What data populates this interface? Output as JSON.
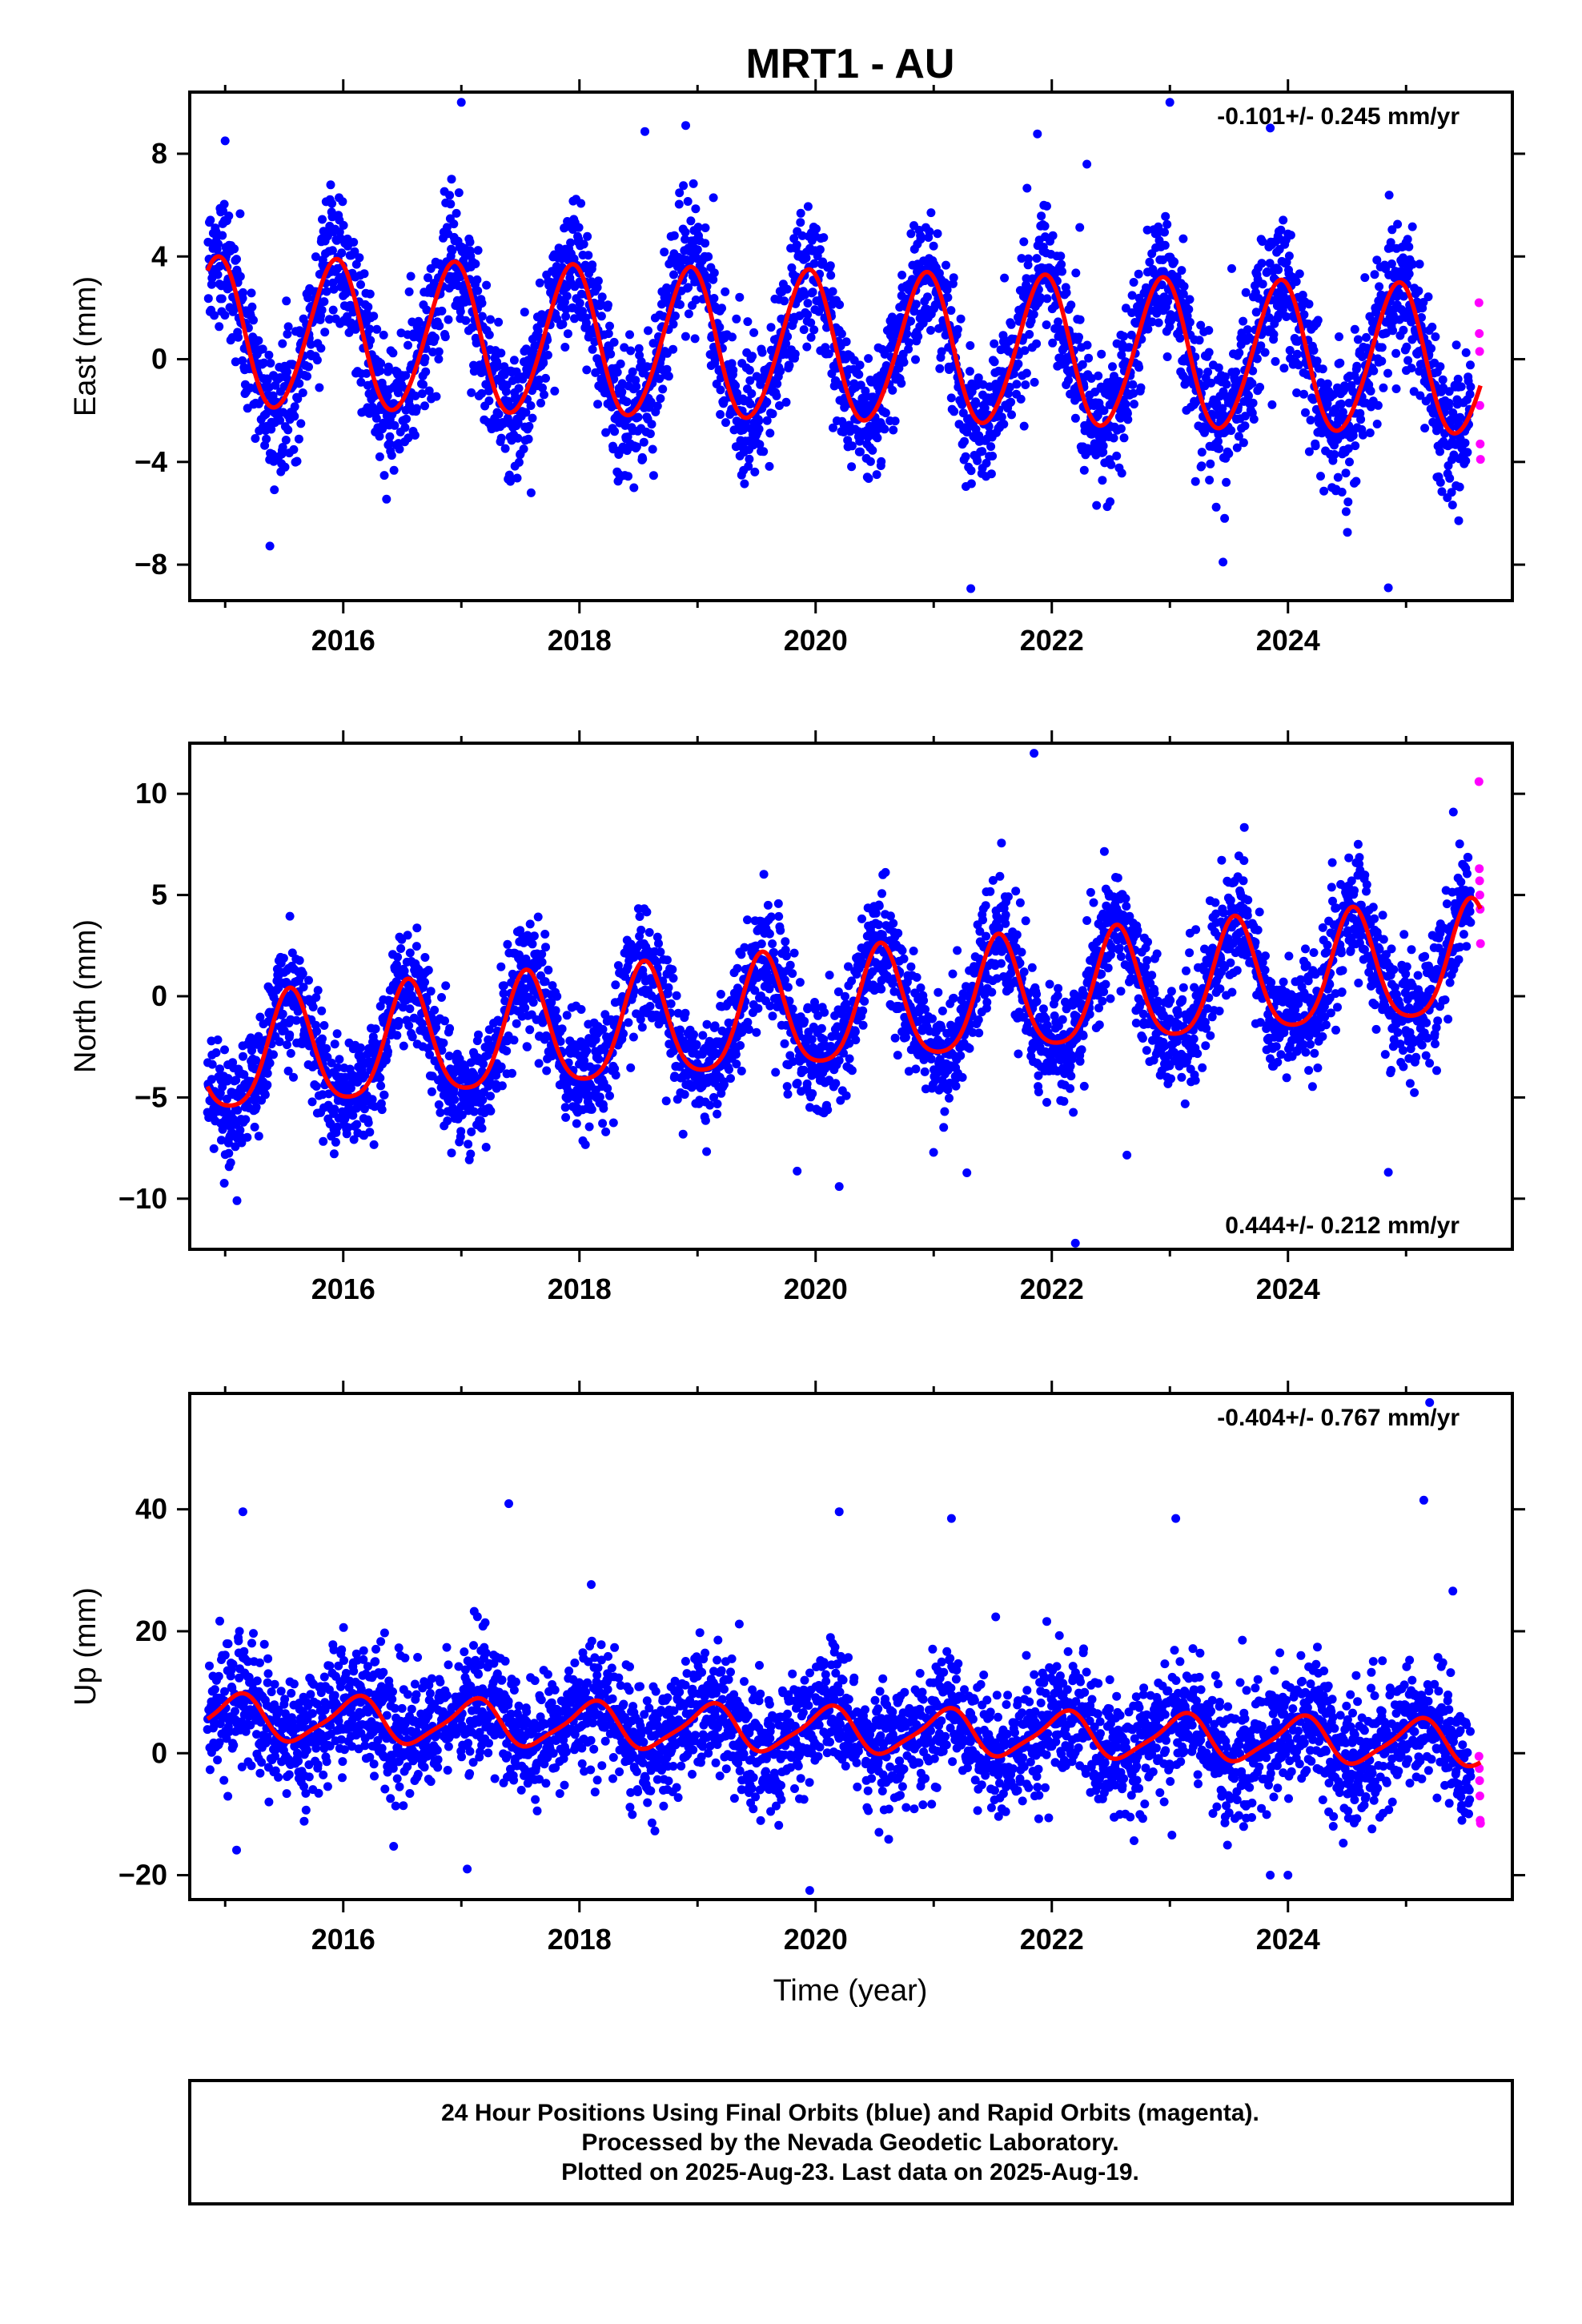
{
  "title": "MRT1 - AU",
  "xlabel": "Time (year)",
  "footer": {
    "line1": "24 Hour Positions Using Final Orbits (blue) and Rapid Orbits (magenta).",
    "line2": "Processed by the Nevada Geodetic Laboratory.",
    "line3": "Plotted on 2025-Aug-23. Last data on 2025-Aug-19."
  },
  "colors": {
    "final_orbits": "#0000ff",
    "rapid_orbits": "#ff00ff",
    "model_fit": "#ff0000"
  },
  "chart_data": [
    {
      "type": "scatter",
      "component": "East",
      "ylabel": "East (mm)",
      "rate_label": "-0.101+/- 0.245 mm/yr",
      "rate_position": "top-right",
      "xlim": [
        2014.7,
        2025.9
      ],
      "ylim": [
        -9.4,
        10.4
      ],
      "yticks": [
        -8,
        -4,
        0,
        4,
        8
      ],
      "xticks": [
        2016,
        2018,
        2020,
        2022,
        2024
      ],
      "data_start": 2014.85,
      "final_end": 2025.55,
      "rapid_end": 2025.63,
      "fit": {
        "offset": 0.45,
        "trend_mm_per_yr": -0.101,
        "annual_amp": 2.9,
        "annual_peak": 2014.93,
        "semiannual_amp": 0.2,
        "semiannual_peak": 2015.0
      },
      "scatter_sd": 1.3,
      "outliers": [
        [
          2017.0,
          10.0
        ],
        [
          2023.0,
          10.0
        ],
        [
          2023.85,
          9.0
        ],
        [
          2018.9,
          9.1
        ],
        [
          2024.85,
          -8.9
        ],
        [
          2023.45,
          -7.9
        ],
        [
          2015.0,
          8.5
        ]
      ],
      "rapid_values": [
        2.2,
        1.0,
        0.3,
        -1.8,
        -3.3,
        -3.9
      ]
    },
    {
      "type": "scatter",
      "component": "North",
      "ylabel": "North (mm)",
      "rate_label": "0.444+/- 0.212 mm/yr",
      "rate_position": "bottom-right",
      "xlim": [
        2014.7,
        2025.9
      ],
      "ylim": [
        -12.5,
        12.5
      ],
      "yticks": [
        -10,
        -5,
        0,
        5,
        10
      ],
      "xticks": [
        2016,
        2018,
        2020,
        2022,
        2024
      ],
      "data_start": 2014.85,
      "final_end": 2025.55,
      "rapid_end": 2025.63,
      "fit": {
        "offset": -0.9,
        "trend_mm_per_yr": 0.444,
        "annual_amp": 2.8,
        "annual_peak": 2015.55,
        "semiannual_amp": 0.5,
        "semiannual_peak": 2015.55
      },
      "scatter_sd": 1.4,
      "outliers": [
        [
          2021.85,
          12.0
        ],
        [
          2022.2,
          -12.2
        ],
        [
          2024.85,
          -8.7
        ],
        [
          2025.4,
          9.1
        ],
        [
          2015.1,
          -10.1
        ],
        [
          2020.2,
          -9.4
        ]
      ],
      "rapid_values": [
        10.6,
        6.3,
        5.7,
        5.0,
        4.3,
        2.6
      ]
    },
    {
      "type": "scatter",
      "component": "Up",
      "ylabel": "Up (mm)",
      "rate_label": "-0.404+/- 0.767 mm/yr",
      "rate_position": "top-right",
      "xlim": [
        2014.7,
        2025.9
      ],
      "ylim": [
        -24,
        59
      ],
      "yticks": [
        -20,
        0,
        20,
        40
      ],
      "xticks": [
        2016,
        2018,
        2020,
        2022,
        2024
      ],
      "data_start": 2014.85,
      "final_end": 2025.55,
      "rapid_end": 2025.63,
      "fit": {
        "offset": 3.8,
        "trend_mm_per_yr": -0.404,
        "annual_amp": 3.6,
        "annual_peak": 2015.1,
        "semiannual_amp": 0.8,
        "semiannual_peak": 2015.2
      },
      "scatter_sd": 5.0,
      "outliers": [
        [
          2025.2,
          57.5
        ],
        [
          2025.15,
          41.5
        ],
        [
          2015.15,
          39.6
        ],
        [
          2020.2,
          39.6
        ],
        [
          2021.15,
          38.5
        ],
        [
          2023.05,
          38.5
        ],
        [
          2019.95,
          -22.5
        ],
        [
          2017.05,
          -19.0
        ],
        [
          2023.85,
          -20.0
        ],
        [
          2024.0,
          -20.0
        ]
      ],
      "rapid_values": [
        -0.5,
        -2.5,
        -4.5,
        -7.0,
        -11.0,
        -11.5
      ]
    }
  ]
}
